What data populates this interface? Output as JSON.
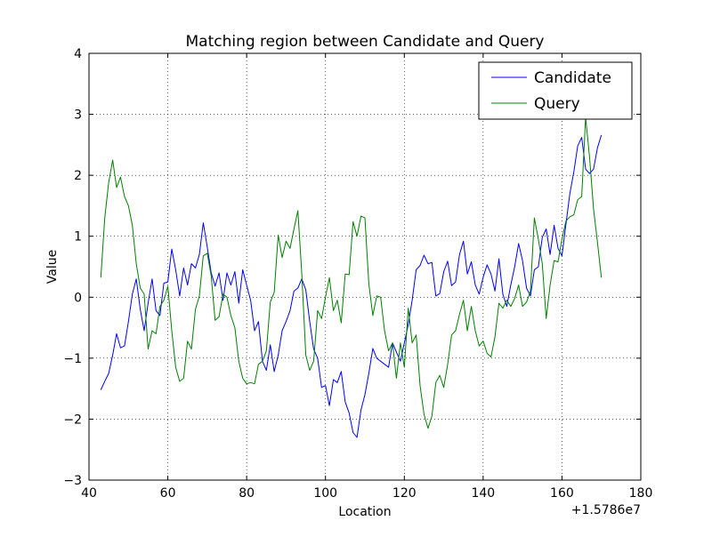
{
  "chart_data": {
    "type": "line",
    "title": "Matching region between Candidate and Query",
    "xlabel": "Location",
    "ylabel": "Value",
    "x_offset_label": "+1.5786e7",
    "xlim": [
      40,
      180
    ],
    "ylim": [
      -3,
      4
    ],
    "xticks": [
      40,
      60,
      80,
      100,
      120,
      140,
      160,
      180
    ],
    "yticks": [
      -3,
      -2,
      -1,
      0,
      1,
      2,
      3,
      4
    ],
    "xtick_labels": [
      "40",
      "60",
      "80",
      "100",
      "120",
      "140",
      "160",
      "180"
    ],
    "ytick_labels": [
      "−3",
      "−2",
      "−1",
      "0",
      "1",
      "2",
      "3",
      "4"
    ],
    "grid": true,
    "legend_position": "top-right",
    "colors": {
      "Candidate": "#0000ff",
      "Query": "#008000"
    },
    "x": [
      43,
      44,
      45,
      46,
      47,
      48,
      49,
      50,
      51,
      52,
      53,
      54,
      55,
      56,
      57,
      58,
      59,
      60,
      61,
      62,
      63,
      64,
      65,
      66,
      67,
      68,
      69,
      70,
      71,
      72,
      73,
      74,
      75,
      76,
      77,
      78,
      79,
      80,
      81,
      82,
      83,
      84,
      85,
      86,
      87,
      88,
      89,
      90,
      91,
      92,
      93,
      94,
      95,
      96,
      97,
      98,
      99,
      100,
      101,
      102,
      103,
      104,
      105,
      106,
      107,
      108,
      109,
      110,
      111,
      112,
      113,
      114,
      115,
      116,
      117,
      118,
      119,
      120,
      121,
      122,
      123,
      124,
      125,
      126,
      127,
      128,
      129,
      130,
      131,
      132,
      133,
      134,
      135,
      136,
      137,
      138,
      139,
      140,
      141,
      142,
      143,
      144,
      145,
      146,
      147,
      148,
      149,
      150,
      151,
      152,
      153,
      154,
      155,
      156,
      157,
      158,
      159,
      160,
      161,
      162,
      163,
      164,
      165,
      166,
      167,
      168,
      169,
      170
    ],
    "series": [
      {
        "name": "Candidate",
        "values": [
          -1.52,
          -1.38,
          -1.25,
          -0.95,
          -0.6,
          -0.83,
          -0.8,
          -0.4,
          0.05,
          0.3,
          -0.2,
          -0.55,
          -0.1,
          0.3,
          -0.22,
          -0.3,
          0.23,
          0.25,
          0.79,
          0.45,
          0.02,
          0.48,
          0.2,
          0.55,
          0.48,
          0.7,
          1.22,
          0.82,
          0.4,
          0.18,
          0.4,
          -0.05,
          0.4,
          0.2,
          0.42,
          -0.1,
          0.45,
          0.2,
          -0.05,
          -0.55,
          -0.4,
          -1.05,
          -1.2,
          -0.78,
          -1.22,
          -0.95,
          -0.55,
          -0.4,
          -0.22,
          0.1,
          0.15,
          0.3,
          0.12,
          -0.4,
          -0.85,
          -1.0,
          -1.48,
          -1.45,
          -1.78,
          -1.35,
          -1.4,
          -1.22,
          -1.72,
          -1.9,
          -2.22,
          -2.3,
          -1.85,
          -1.6,
          -1.25,
          -0.84,
          -1.0,
          -1.05,
          -1.1,
          -1.15,
          -0.75,
          -0.9,
          -1.05,
          -0.75,
          -0.45,
          -0.05,
          0.45,
          0.52,
          0.69,
          0.55,
          0.57,
          0.02,
          0.06,
          0.42,
          0.59,
          0.19,
          0.25,
          0.7,
          0.92,
          0.38,
          0.58,
          0.2,
          0.05,
          0.33,
          0.53,
          0.38,
          0.1,
          0.63,
          0.05,
          -0.15,
          0.2,
          0.5,
          0.88,
          0.6,
          0.15,
          0.02,
          0.45,
          0.5,
          0.98,
          1.12,
          0.7,
          1.18,
          0.8,
          0.68,
          1.2,
          1.7,
          2.05,
          2.48,
          2.62,
          2.1,
          2.03,
          2.1,
          2.45,
          2.66
        ]
      },
      {
        "name": "Query",
        "values": [
          0.32,
          1.3,
          1.88,
          2.25,
          1.8,
          1.97,
          1.65,
          1.5,
          1.18,
          0.55,
          0.15,
          0.05,
          -0.85,
          -0.55,
          -0.6,
          -0.15,
          -0.05,
          0.18,
          -0.55,
          -1.15,
          -1.38,
          -1.33,
          -0.72,
          -0.85,
          -0.2,
          0.02,
          0.68,
          0.72,
          0.35,
          -0.38,
          -0.32,
          0.05,
          0.0,
          -0.3,
          -0.5,
          -1.05,
          -1.33,
          -1.42,
          -1.4,
          -1.42,
          -1.1,
          -1.05,
          -0.88,
          -0.08,
          0.08,
          1.02,
          0.65,
          0.92,
          0.8,
          1.12,
          1.42,
          0.38,
          -0.95,
          -1.2,
          -1.05,
          -0.22,
          -0.35,
          0.0,
          0.32,
          -0.22,
          -0.05,
          -0.42,
          0.38,
          0.37,
          1.24,
          1.0,
          1.33,
          1.3,
          0.22,
          -0.3,
          0.02,
          0.0,
          -0.55,
          -0.88,
          -0.75,
          -1.33,
          -0.75,
          -1.15,
          -0.18,
          -0.75,
          -0.62,
          -1.45,
          -1.92,
          -2.15,
          -1.95,
          -1.4,
          -1.28,
          -1.48,
          -1.1,
          -0.62,
          -0.55,
          -0.28,
          -0.05,
          -0.55,
          -0.15,
          -0.55,
          -0.8,
          -0.72,
          -0.92,
          -0.98,
          -0.65,
          -0.1,
          -0.18,
          -0.05,
          -0.15,
          -0.02,
          0.2,
          -0.15,
          -0.08,
          0.1,
          1.3,
          0.95,
          0.55,
          -0.35,
          0.2,
          0.6,
          0.58,
          0.95,
          1.25,
          1.32,
          1.35,
          1.6,
          1.65,
          2.95,
          2.3,
          1.45,
          0.9,
          0.32
        ]
      }
    ]
  }
}
